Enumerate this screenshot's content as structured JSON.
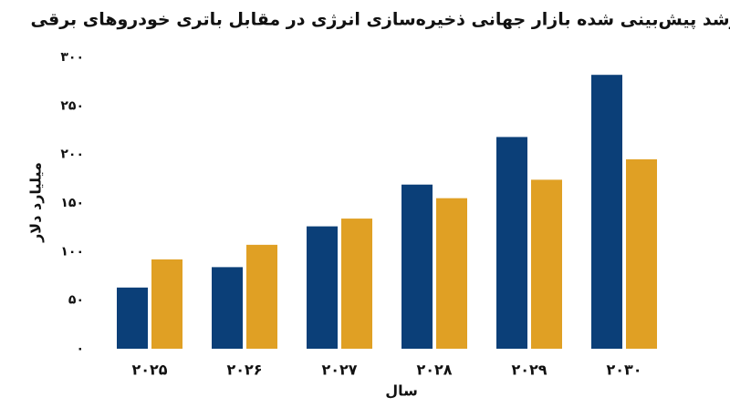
{
  "chart_data": {
    "type": "bar",
    "title": "رشد پیش‌بینی شده بازار جهانی ذخیره‌سازی انرژی در مقابل باتری خودروهای برقی",
    "x_label": "سال",
    "y_label": "میلیارد دلار",
    "categories": [
      "۲۰۲۵",
      "۲۰۲۶",
      "۲۰۲۷",
      "۲۰۲۸",
      "۲۰۲۹",
      "۲۰۳۰"
    ],
    "series": [
      {
        "color": "#0b3f78",
        "values": [
          63,
          84,
          126,
          169,
          218,
          282
        ]
      },
      {
        "color": "#e0a024",
        "values": [
          92,
          107,
          134,
          155,
          174,
          195
        ]
      }
    ],
    "ylim": [
      0,
      300
    ],
    "yticks": [
      {
        "value": 0,
        "label": "۰"
      },
      {
        "value": 50,
        "label": "۵۰"
      },
      {
        "value": 100,
        "label": "۱۰۰"
      },
      {
        "value": 150,
        "label": "۱۵۰"
      },
      {
        "value": 200,
        "label": "۲۰۰"
      },
      {
        "value": 250,
        "label": "۲۵۰"
      },
      {
        "value": 300,
        "label": "۳۰۰"
      }
    ],
    "grid": false
  }
}
